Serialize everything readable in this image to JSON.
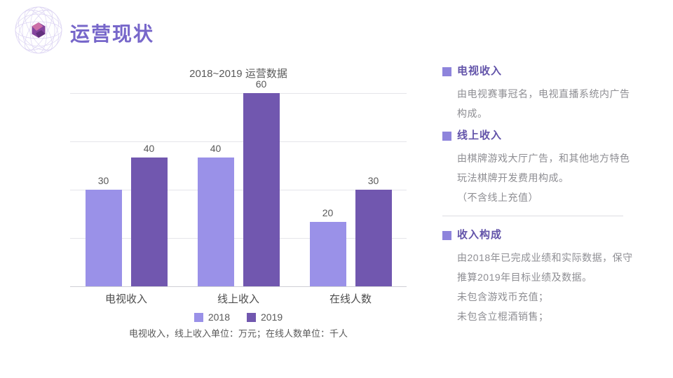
{
  "header": {
    "title": "运营现状"
  },
  "chart_data": {
    "type": "bar",
    "title": "2018~2019 运营数据",
    "categories": [
      "电视收入",
      "线上收入",
      "在线人数"
    ],
    "series": [
      {
        "name": "2018",
        "color": "#9A91E8",
        "values": [
          30,
          40,
          20
        ]
      },
      {
        "name": "2019",
        "color": "#7157AF",
        "values": [
          40,
          60,
          30
        ]
      }
    ],
    "ylim": [
      0,
      60
    ],
    "gridline_interval": 15,
    "grid": "on",
    "data_labels": true,
    "legend_position": "bottom",
    "caption": "电视收入，线上收入单位：万元；在线人数单位：千人"
  },
  "panel": {
    "accent_color": "#8E84DC",
    "sections": [
      {
        "heading": "电视收入",
        "divider_above": false,
        "lines": [
          "由电视赛事冠名，电视直播系统内广告",
          "构成。"
        ]
      },
      {
        "heading": "线上收入",
        "divider_above": false,
        "lines": [
          "由棋牌游戏大厅广告，和其他地方特色",
          "玩法棋牌开发费用构成。",
          "（不含线上充值）"
        ]
      },
      {
        "heading": "收入构成",
        "divider_above": true,
        "lines": [
          "由2018年已完成业绩和实际数据，保守",
          "推算2019年目标业绩及数据。",
          "未包含游戏币充值；",
          "未包含立棍酒销售；"
        ]
      }
    ]
  }
}
